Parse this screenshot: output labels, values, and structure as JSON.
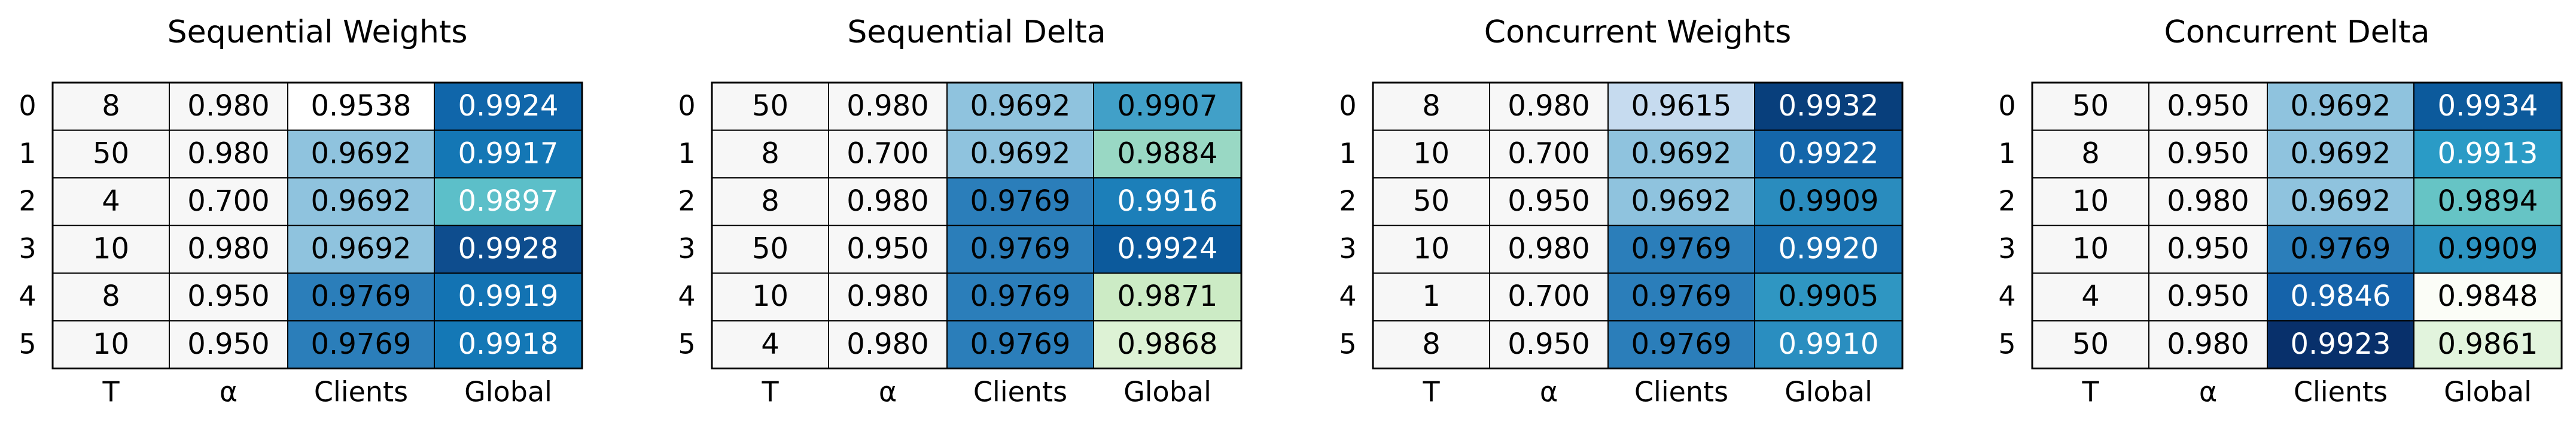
{
  "chart_data": [
    {
      "type": "table",
      "title": "Sequential Weights",
      "columns": [
        "T",
        "α",
        "Clients",
        "Global"
      ],
      "row_labels": [
        "0",
        "1",
        "2",
        "3",
        "4",
        "5"
      ],
      "rows": [
        [
          "8",
          "0.980",
          "0.9538",
          "0.9924"
        ],
        [
          "50",
          "0.980",
          "0.9692",
          "0.9917"
        ],
        [
          "4",
          "0.700",
          "0.9692",
          "0.9897"
        ],
        [
          "10",
          "0.980",
          "0.9692",
          "0.9928"
        ],
        [
          "8",
          "0.950",
          "0.9769",
          "0.9919"
        ],
        [
          "10",
          "0.950",
          "0.9769",
          "0.9918"
        ]
      ],
      "cell_colors": [
        [
          "#f7f7f7",
          "#f7f7f7",
          "#ffffff",
          "#1066aa"
        ],
        [
          "#f7f7f7",
          "#f7f7f7",
          "#8fc3de",
          "#1477b5"
        ],
        [
          "#f7f7f7",
          "#f7f7f7",
          "#8fc3de",
          "#5cbfc9"
        ],
        [
          "#f7f7f7",
          "#f7f7f7",
          "#8fc3de",
          "#0e4d8e"
        ],
        [
          "#f7f7f7",
          "#f7f7f7",
          "#2b7eba",
          "#1373b3"
        ],
        [
          "#f7f7f7",
          "#f7f7f7",
          "#2b7eba",
          "#1478b6"
        ]
      ],
      "text_colors": [
        [
          "#000000",
          "#000000",
          "#000000",
          "#ffffff"
        ],
        [
          "#000000",
          "#000000",
          "#000000",
          "#ffffff"
        ],
        [
          "#000000",
          "#000000",
          "#000000",
          "#ffffff"
        ],
        [
          "#000000",
          "#000000",
          "#000000",
          "#ffffff"
        ],
        [
          "#000000",
          "#000000",
          "#000000",
          "#ffffff"
        ],
        [
          "#000000",
          "#000000",
          "#000000",
          "#ffffff"
        ]
      ]
    },
    {
      "type": "table",
      "title": "Sequential Delta",
      "columns": [
        "T",
        "α",
        "Clients",
        "Global"
      ],
      "row_labels": [
        "0",
        "1",
        "2",
        "3",
        "4",
        "5"
      ],
      "rows": [
        [
          "50",
          "0.980",
          "0.9692",
          "0.9907"
        ],
        [
          "8",
          "0.700",
          "0.9692",
          "0.9884"
        ],
        [
          "8",
          "0.980",
          "0.9769",
          "0.9916"
        ],
        [
          "50",
          "0.950",
          "0.9769",
          "0.9924"
        ],
        [
          "10",
          "0.980",
          "0.9769",
          "0.9871"
        ],
        [
          "4",
          "0.980",
          "0.9769",
          "0.9868"
        ]
      ],
      "cell_colors": [
        [
          "#f7f7f7",
          "#f7f7f7",
          "#8fc3de",
          "#41a0c8"
        ],
        [
          "#f7f7f7",
          "#f7f7f7",
          "#8fc3de",
          "#99d8c4"
        ],
        [
          "#f7f7f7",
          "#f7f7f7",
          "#2b7eba",
          "#1c7fb9"
        ],
        [
          "#f7f7f7",
          "#f7f7f7",
          "#2b7eba",
          "#0c5a9c"
        ],
        [
          "#f7f7f7",
          "#f7f7f7",
          "#2b7eba",
          "#ccebc5"
        ],
        [
          "#f7f7f7",
          "#f7f7f7",
          "#2b7eba",
          "#ddf2d5"
        ]
      ],
      "text_colors": [
        [
          "#000000",
          "#000000",
          "#000000",
          "#000000"
        ],
        [
          "#000000",
          "#000000",
          "#000000",
          "#000000"
        ],
        [
          "#000000",
          "#000000",
          "#000000",
          "#ffffff"
        ],
        [
          "#000000",
          "#000000",
          "#000000",
          "#ffffff"
        ],
        [
          "#000000",
          "#000000",
          "#000000",
          "#000000"
        ],
        [
          "#000000",
          "#000000",
          "#000000",
          "#000000"
        ]
      ]
    },
    {
      "type": "table",
      "title": "Concurrent Weights",
      "columns": [
        "T",
        "α",
        "Clients",
        "Global"
      ],
      "row_labels": [
        "0",
        "1",
        "2",
        "3",
        "4",
        "5"
      ],
      "rows": [
        [
          "8",
          "0.980",
          "0.9615",
          "0.9932"
        ],
        [
          "10",
          "0.700",
          "0.9692",
          "0.9922"
        ],
        [
          "50",
          "0.950",
          "0.9692",
          "0.9909"
        ],
        [
          "10",
          "0.980",
          "0.9769",
          "0.9920"
        ],
        [
          "1",
          "0.700",
          "0.9769",
          "0.9905"
        ],
        [
          "8",
          "0.950",
          "0.9769",
          "0.9910"
        ]
      ],
      "cell_colors": [
        [
          "#f7f7f7",
          "#f7f7f7",
          "#c6dbef",
          "#083f7c"
        ],
        [
          "#f7f7f7",
          "#f7f7f7",
          "#8fc3de",
          "#1466aa"
        ],
        [
          "#f7f7f7",
          "#f7f7f7",
          "#8fc3de",
          "#2a8cbe"
        ],
        [
          "#f7f7f7",
          "#f7f7f7",
          "#2b7eba",
          "#1a70b0"
        ],
        [
          "#f7f7f7",
          "#f7f7f7",
          "#2b7eba",
          "#2f96c2"
        ],
        [
          "#f7f7f7",
          "#f7f7f7",
          "#2b7eba",
          "#2a8ec0"
        ]
      ],
      "text_colors": [
        [
          "#000000",
          "#000000",
          "#000000",
          "#ffffff"
        ],
        [
          "#000000",
          "#000000",
          "#000000",
          "#ffffff"
        ],
        [
          "#000000",
          "#000000",
          "#000000",
          "#000000"
        ],
        [
          "#000000",
          "#000000",
          "#000000",
          "#ffffff"
        ],
        [
          "#000000",
          "#000000",
          "#000000",
          "#000000"
        ],
        [
          "#000000",
          "#000000",
          "#000000",
          "#ffffff"
        ]
      ]
    },
    {
      "type": "table",
      "title": "Concurrent Delta",
      "columns": [
        "T",
        "α",
        "Clients",
        "Global"
      ],
      "row_labels": [
        "0",
        "1",
        "2",
        "3",
        "4",
        "5"
      ],
      "rows": [
        [
          "50",
          "0.950",
          "0.9692",
          "0.9934"
        ],
        [
          "8",
          "0.950",
          "0.9692",
          "0.9913"
        ],
        [
          "10",
          "0.980",
          "0.9692",
          "0.9894"
        ],
        [
          "10",
          "0.950",
          "0.9769",
          "0.9909"
        ],
        [
          "4",
          "0.950",
          "0.9846",
          "0.9848"
        ],
        [
          "50",
          "0.980",
          "0.9923",
          "0.9861"
        ]
      ],
      "cell_colors": [
        [
          "#f7f7f7",
          "#f7f7f7",
          "#8fc3de",
          "#0c5a9c"
        ],
        [
          "#f7f7f7",
          "#f7f7f7",
          "#8fc3de",
          "#2a9bc6"
        ],
        [
          "#f7f7f7",
          "#f7f7f7",
          "#8fc3de",
          "#66c4c5"
        ],
        [
          "#f7f7f7",
          "#f7f7f7",
          "#2b7eba",
          "#2c94c2"
        ],
        [
          "#f7f7f7",
          "#f7f7f7",
          "#1563aa",
          "#fbfdf7"
        ],
        [
          "#f7f7f7",
          "#f7f7f7",
          "#08306b",
          "#e2f4dd"
        ]
      ],
      "text_colors": [
        [
          "#000000",
          "#000000",
          "#000000",
          "#ffffff"
        ],
        [
          "#000000",
          "#000000",
          "#000000",
          "#ffffff"
        ],
        [
          "#000000",
          "#000000",
          "#000000",
          "#000000"
        ],
        [
          "#000000",
          "#000000",
          "#000000",
          "#000000"
        ],
        [
          "#000000",
          "#000000",
          "#ffffff",
          "#000000"
        ],
        [
          "#000000",
          "#000000",
          "#ffffff",
          "#000000"
        ]
      ]
    }
  ]
}
